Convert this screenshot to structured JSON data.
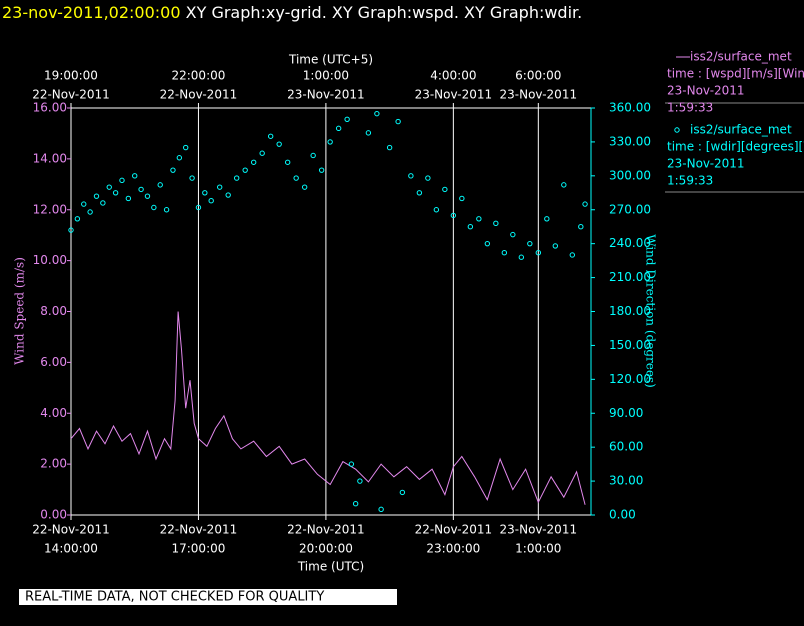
{
  "chart_data": {
    "type": "xy",
    "title_time": "23-nov-2011,02:00:00",
    "title": " XY Graph:xy-grid.  XY Graph:wspd.  XY Graph:wdir.",
    "x_label": "Time (UTC)",
    "x2_label": "Time (UTC+5)",
    "y_label": "Wind Speed (m/s)",
    "y2_label": "Wind Direction (degrees)",
    "footer": "REAL-TIME DATA, NOT CHECKED FOR QUALITY",
    "grid": "vertical",
    "xlim": [
      14,
      26.24
    ],
    "xticks": [
      {
        "value": 14,
        "label": "14:00:00",
        "date": "22-Nov-2011"
      },
      {
        "value": 17,
        "label": "17:00:00",
        "date": "22-Nov-2011"
      },
      {
        "value": 20,
        "label": "20:00:00",
        "date": "22-Nov-2011"
      },
      {
        "value": 23,
        "label": "23:00:00",
        "date": "22-Nov-2011"
      },
      {
        "value": 25,
        "label": "1:00:00",
        "date": "23-Nov-2011"
      }
    ],
    "x2ticks": [
      {
        "value": 14,
        "label": "19:00:00",
        "date": "22-Nov-2011"
      },
      {
        "value": 17,
        "label": "22:00:00",
        "date": "22-Nov-2011"
      },
      {
        "value": 20,
        "label": "1:00:00",
        "date": "23-Nov-2011"
      },
      {
        "value": 23,
        "label": "4:00:00",
        "date": "23-Nov-2011"
      },
      {
        "value": 25,
        "label": "6:00:00",
        "date": "23-Nov-2011"
      }
    ],
    "ylim": [
      0,
      16
    ],
    "yticks": [
      {
        "value": 0,
        "label": "0.00"
      },
      {
        "value": 2,
        "label": "2.00"
      },
      {
        "value": 4,
        "label": "4.00"
      },
      {
        "value": 6,
        "label": "6.00"
      },
      {
        "value": 8,
        "label": "8.00"
      },
      {
        "value": 10,
        "label": "10.00"
      },
      {
        "value": 12,
        "label": "12.00"
      },
      {
        "value": 14,
        "label": "14.00"
      },
      {
        "value": 16,
        "label": "16.00"
      }
    ],
    "y2lim": [
      0,
      360
    ],
    "y2ticks": [
      {
        "value": 0,
        "label": "0.00"
      },
      {
        "value": 30,
        "label": "30.00"
      },
      {
        "value": 60,
        "label": "60.00"
      },
      {
        "value": 90,
        "label": "90.00"
      },
      {
        "value": 120,
        "label": "120.00"
      },
      {
        "value": 150,
        "label": "150.00"
      },
      {
        "value": 180,
        "label": "180.00"
      },
      {
        "value": 210,
        "label": "210.00"
      },
      {
        "value": 240,
        "label": "240.00"
      },
      {
        "value": 270,
        "label": "270.00"
      },
      {
        "value": 300,
        "label": "300.00"
      },
      {
        "value": 330,
        "label": "330.00"
      },
      {
        "value": 360,
        "label": "360.00"
      }
    ],
    "series": [
      {
        "name": "iss2/surface_met",
        "style": "line",
        "color": "#e288ec",
        "axis": "y",
        "legend_lines": [
          "time : [wspd][m/s][Wind",
          "23-Nov-2011",
          "1:59:33"
        ],
        "x": [
          14.0,
          14.2,
          14.4,
          14.6,
          14.8,
          15.0,
          15.2,
          15.4,
          15.6,
          15.8,
          16.0,
          16.2,
          16.35,
          16.45,
          16.52,
          16.6,
          16.7,
          16.8,
          16.9,
          17.0,
          17.2,
          17.4,
          17.6,
          17.8,
          18.0,
          18.3,
          18.6,
          18.9,
          19.2,
          19.5,
          19.8,
          20.1,
          20.4,
          20.7,
          21.0,
          21.3,
          21.6,
          21.9,
          22.2,
          22.5,
          22.8,
          23.0,
          23.2,
          23.5,
          23.8,
          24.1,
          24.4,
          24.7,
          25.0,
          25.3,
          25.6,
          25.9,
          26.1
        ],
        "values": [
          3.0,
          3.4,
          2.6,
          3.3,
          2.8,
          3.5,
          2.9,
          3.2,
          2.4,
          3.3,
          2.2,
          3.0,
          2.6,
          4.5,
          8.0,
          6.5,
          4.2,
          5.3,
          3.6,
          3.0,
          2.7,
          3.4,
          3.9,
          3.0,
          2.6,
          2.9,
          2.3,
          2.7,
          2.0,
          2.2,
          1.6,
          1.2,
          2.1,
          1.8,
          1.3,
          2.0,
          1.5,
          1.9,
          1.4,
          1.8,
          0.8,
          1.9,
          2.3,
          1.5,
          0.6,
          2.2,
          1.0,
          1.8,
          0.5,
          1.5,
          0.7,
          1.7,
          0.4
        ]
      },
      {
        "name": "iss2/surface_met",
        "style": "scatter",
        "color": "#00ffff",
        "axis": "y2",
        "legend_lines": [
          "time : [wdir][degrees][W",
          "23-Nov-2011",
          "1:59:33"
        ],
        "x": [
          14.0,
          14.15,
          14.3,
          14.45,
          14.6,
          14.75,
          14.9,
          15.05,
          15.2,
          15.35,
          15.5,
          15.65,
          15.8,
          15.95,
          16.1,
          16.25,
          16.4,
          16.55,
          16.7,
          16.85,
          17.0,
          17.15,
          17.3,
          17.5,
          17.7,
          17.9,
          18.1,
          18.3,
          18.5,
          18.7,
          18.9,
          19.1,
          19.3,
          19.5,
          19.7,
          19.9,
          20.1,
          20.3,
          20.5,
          20.6,
          20.7,
          20.8,
          21.0,
          21.2,
          21.3,
          21.5,
          21.7,
          21.8,
          22.0,
          22.2,
          22.4,
          22.6,
          22.8,
          23.0,
          23.2,
          23.4,
          23.6,
          23.8,
          24.0,
          24.2,
          24.4,
          24.6,
          24.8,
          25.0,
          25.2,
          25.4,
          25.6,
          25.8,
          26.0,
          26.1
        ],
        "values": [
          252,
          262,
          275,
          268,
          282,
          276,
          290,
          285,
          296,
          280,
          300,
          288,
          282,
          272,
          292,
          270,
          305,
          316,
          325,
          298,
          272,
          285,
          278,
          290,
          283,
          298,
          305,
          312,
          320,
          335,
          328,
          312,
          298,
          290,
          318,
          305,
          330,
          342,
          350,
          45,
          10,
          30,
          338,
          355,
          5,
          325,
          348,
          20,
          300,
          285,
          298,
          270,
          288,
          265,
          280,
          255,
          262,
          240,
          258,
          232,
          248,
          228,
          240,
          232,
          262,
          238,
          292,
          230,
          255,
          275
        ]
      }
    ]
  }
}
